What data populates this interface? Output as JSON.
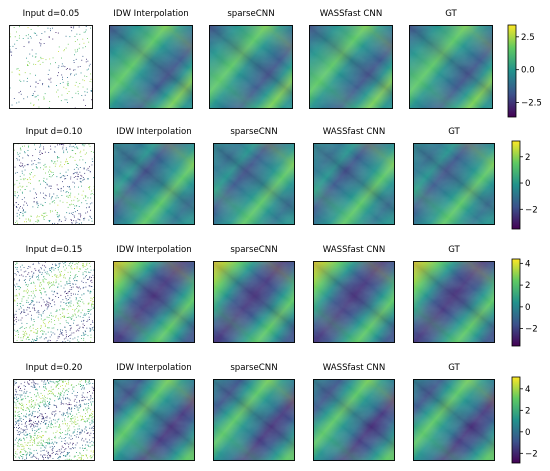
{
  "figure": {
    "colormap": "viridis",
    "colormap_stops": [
      "#440154",
      "#3b528b",
      "#21918c",
      "#5ec962",
      "#fde725"
    ],
    "border_color": "#000000",
    "rows": [
      {
        "titles": [
          "Input d=0.05",
          "IDW Interpolation",
          "sparseCNN",
          "WASSfast CNN",
          "GT"
        ],
        "colorbar": {
          "min": -3.6,
          "max": 3.4,
          "ticks": [
            {
              "value": 2.5,
              "label": "2.5"
            },
            {
              "value": 0.0,
              "label": "0.0"
            },
            {
              "value": -2.5,
              "label": "−2.5"
            }
          ]
        },
        "input_density": 0.05
      },
      {
        "titles": [
          "Input d=0.10",
          "IDW Interpolation",
          "sparseCNN",
          "WASSfast CNN",
          "GT"
        ],
        "colorbar": {
          "min": -3.5,
          "max": 3.2,
          "ticks": [
            {
              "value": 2,
              "label": "2"
            },
            {
              "value": 0,
              "label": "0"
            },
            {
              "value": -2,
              "label": "−2"
            }
          ]
        },
        "input_density": 0.1
      },
      {
        "titles": [
          "Input d=0.15",
          "IDW Interpolation",
          "sparseCNN",
          "WASSfast CNN",
          "GT"
        ],
        "colorbar": {
          "min": -3.6,
          "max": 4.4,
          "ticks": [
            {
              "value": 4,
              "label": "4"
            },
            {
              "value": 2,
              "label": "2"
            },
            {
              "value": 0,
              "label": "0"
            },
            {
              "value": -2,
              "label": "−2"
            }
          ]
        },
        "input_density": 0.15
      },
      {
        "titles": [
          "Input d=0.20",
          "IDW Interpolation",
          "sparseCNN",
          "WASSfast CNN",
          "GT"
        ],
        "colorbar": {
          "min": -2.9,
          "max": 5.1,
          "ticks": [
            {
              "value": 4,
              "label": "4"
            },
            {
              "value": 2,
              "label": "2"
            },
            {
              "value": 0,
              "label": "0"
            },
            {
              "value": -2,
              "label": "−2"
            }
          ]
        },
        "input_density": 0.2
      }
    ]
  }
}
